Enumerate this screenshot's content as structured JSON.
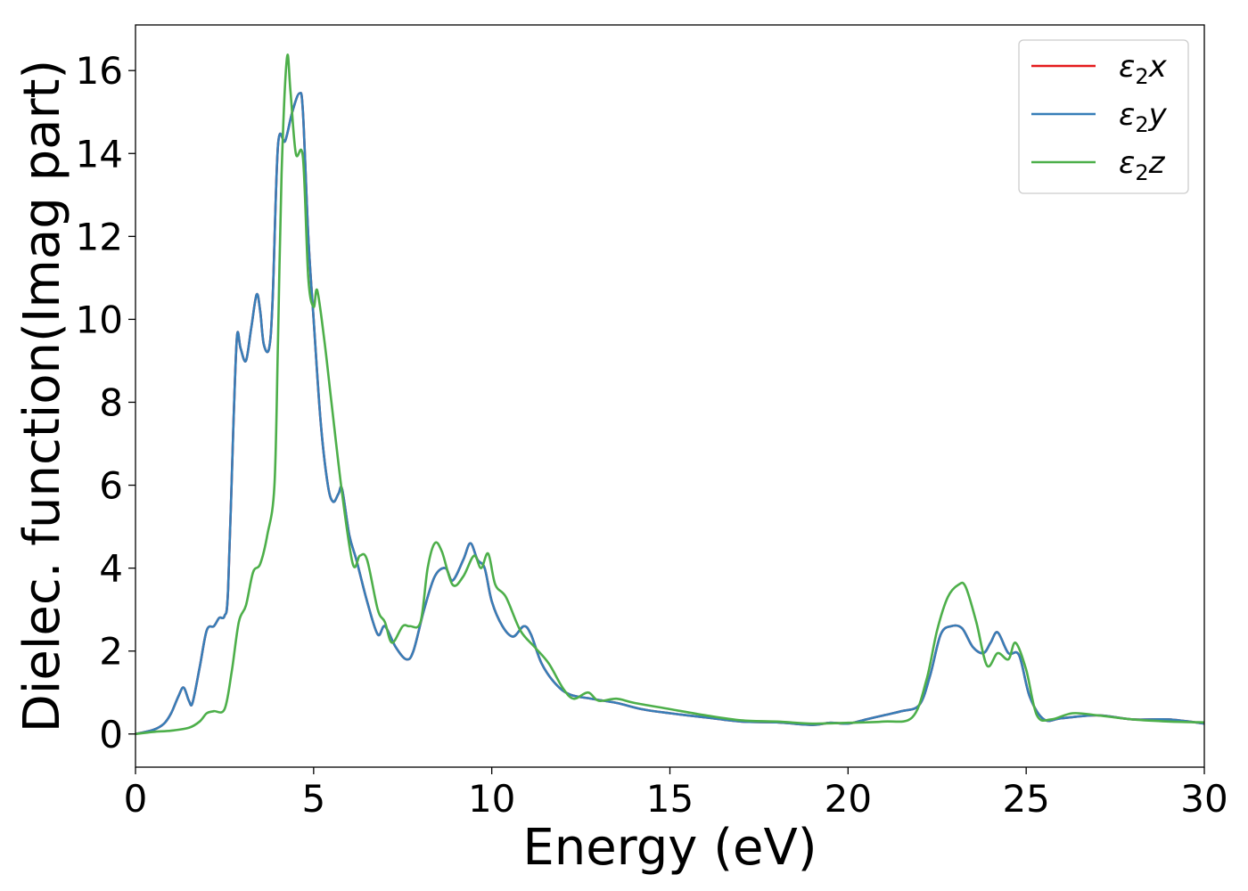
{
  "chart_data": {
    "type": "line",
    "xlabel": "Energy (eV)",
    "ylabel": "Dielec. function(Imag part)",
    "xlim": [
      0,
      30
    ],
    "ylim": [
      -0.8,
      17.1
    ],
    "x_ticks": [
      0,
      5,
      10,
      15,
      20,
      25,
      30
    ],
    "y_ticks": [
      0,
      2,
      4,
      6,
      8,
      10,
      12,
      14,
      16
    ],
    "grid": false,
    "legend": "top-right",
    "series": [
      {
        "name": "x",
        "name_prefix": "ε",
        "name_sub": "2",
        "color": "#e41a1c",
        "x": [
          0,
          0.5,
          0.8,
          1.0,
          1.2,
          1.35,
          1.5,
          1.6,
          1.8,
          2.0,
          2.2,
          2.35,
          2.5,
          2.6,
          2.75,
          2.85,
          2.95,
          3.1,
          3.25,
          3.4,
          3.5,
          3.6,
          3.75,
          3.85,
          4.0,
          4.2,
          4.4,
          4.6,
          4.7,
          4.85,
          5.0,
          5.2,
          5.4,
          5.55,
          5.7,
          5.8,
          6.0,
          6.2,
          6.5,
          6.8,
          7.0,
          7.3,
          7.6,
          7.8,
          8.1,
          8.4,
          8.7,
          8.9,
          9.2,
          9.4,
          9.6,
          9.8,
          10.0,
          10.3,
          10.6,
          10.9,
          11.1,
          11.4,
          11.8,
          12.2,
          12.8,
          13.5,
          14.2,
          15.0,
          16.0,
          17.0,
          18.0,
          19.0,
          19.5,
          20.0,
          20.5,
          21.0,
          21.5,
          22.0,
          22.3,
          22.6,
          22.9,
          23.2,
          23.5,
          23.8,
          24.0,
          24.2,
          24.5,
          24.8,
          25.1,
          25.5,
          26.0,
          27.0,
          28.0,
          29.0,
          30.0
        ],
        "values": [
          0.0,
          0.1,
          0.25,
          0.5,
          0.9,
          1.12,
          0.8,
          0.75,
          1.6,
          2.5,
          2.6,
          2.8,
          2.85,
          3.5,
          7.5,
          9.6,
          9.3,
          9.0,
          9.8,
          10.6,
          10.2,
          9.4,
          9.3,
          10.5,
          14.2,
          14.3,
          15.0,
          15.45,
          15.0,
          12.0,
          10.0,
          7.5,
          6.0,
          5.6,
          5.8,
          5.9,
          4.8,
          4.2,
          3.2,
          2.4,
          2.6,
          2.1,
          1.8,
          2.0,
          3.0,
          3.8,
          4.0,
          3.7,
          4.2,
          4.6,
          4.2,
          4.0,
          3.2,
          2.6,
          2.35,
          2.6,
          2.4,
          1.7,
          1.2,
          0.95,
          0.85,
          0.75,
          0.6,
          0.5,
          0.4,
          0.3,
          0.28,
          0.22,
          0.27,
          0.25,
          0.35,
          0.45,
          0.55,
          0.7,
          1.4,
          2.4,
          2.6,
          2.55,
          2.1,
          1.95,
          2.2,
          2.45,
          1.95,
          1.9,
          0.9,
          0.35,
          0.38,
          0.45,
          0.35,
          0.35,
          0.25
        ]
      },
      {
        "name": "y",
        "name_prefix": "ε",
        "name_sub": "2",
        "color": "#377eb8",
        "x": [
          0,
          0.5,
          0.8,
          1.0,
          1.2,
          1.35,
          1.5,
          1.6,
          1.8,
          2.0,
          2.2,
          2.35,
          2.5,
          2.6,
          2.75,
          2.85,
          2.95,
          3.1,
          3.25,
          3.4,
          3.5,
          3.6,
          3.75,
          3.85,
          4.0,
          4.2,
          4.4,
          4.6,
          4.7,
          4.85,
          5.0,
          5.2,
          5.4,
          5.55,
          5.7,
          5.8,
          6.0,
          6.2,
          6.5,
          6.8,
          7.0,
          7.3,
          7.6,
          7.8,
          8.1,
          8.4,
          8.7,
          8.9,
          9.2,
          9.4,
          9.6,
          9.8,
          10.0,
          10.3,
          10.6,
          10.9,
          11.1,
          11.4,
          11.8,
          12.2,
          12.8,
          13.5,
          14.2,
          15.0,
          16.0,
          17.0,
          18.0,
          19.0,
          19.5,
          20.0,
          20.5,
          21.0,
          21.5,
          22.0,
          22.3,
          22.6,
          22.9,
          23.2,
          23.5,
          23.8,
          24.0,
          24.2,
          24.5,
          24.8,
          25.1,
          25.5,
          26.0,
          27.0,
          28.0,
          29.0,
          30.0
        ],
        "values": [
          0.0,
          0.1,
          0.25,
          0.5,
          0.9,
          1.12,
          0.8,
          0.75,
          1.6,
          2.5,
          2.6,
          2.8,
          2.85,
          3.5,
          7.5,
          9.6,
          9.3,
          9.0,
          9.8,
          10.6,
          10.2,
          9.4,
          9.3,
          10.5,
          14.2,
          14.3,
          15.0,
          15.45,
          15.0,
          12.0,
          10.0,
          7.5,
          6.0,
          5.6,
          5.8,
          5.9,
          4.8,
          4.2,
          3.2,
          2.4,
          2.6,
          2.1,
          1.8,
          2.0,
          3.0,
          3.8,
          4.0,
          3.7,
          4.2,
          4.6,
          4.2,
          4.0,
          3.2,
          2.6,
          2.35,
          2.6,
          2.4,
          1.7,
          1.2,
          0.95,
          0.85,
          0.75,
          0.6,
          0.5,
          0.4,
          0.3,
          0.28,
          0.22,
          0.27,
          0.25,
          0.35,
          0.45,
          0.55,
          0.7,
          1.4,
          2.4,
          2.6,
          2.55,
          2.1,
          1.95,
          2.2,
          2.45,
          1.95,
          1.9,
          0.9,
          0.35,
          0.38,
          0.45,
          0.35,
          0.35,
          0.25
        ]
      },
      {
        "name": "z",
        "name_prefix": "ε",
        "name_sub": "2",
        "color": "#4daf4a",
        "x": [
          0,
          0.5,
          1.0,
          1.5,
          1.8,
          2.0,
          2.2,
          2.5,
          2.7,
          2.9,
          3.1,
          3.3,
          3.5,
          3.7,
          3.9,
          4.0,
          4.1,
          4.25,
          4.35,
          4.5,
          4.7,
          4.85,
          5.0,
          5.1,
          5.3,
          5.5,
          5.8,
          6.1,
          6.3,
          6.5,
          6.8,
          7.0,
          7.2,
          7.5,
          7.7,
          8.0,
          8.2,
          8.4,
          8.6,
          8.9,
          9.2,
          9.5,
          9.7,
          9.9,
          10.1,
          10.4,
          10.8,
          11.2,
          11.6,
          12.0,
          12.3,
          12.7,
          13.0,
          13.5,
          14.0,
          15.0,
          16.0,
          17.0,
          18.0,
          19.0,
          20.0,
          21.0,
          21.8,
          22.2,
          22.5,
          22.8,
          23.1,
          23.3,
          23.6,
          23.9,
          24.2,
          24.5,
          24.7,
          25.0,
          25.3,
          25.7,
          26.3,
          27.0,
          28.0,
          29.0,
          30.0
        ],
        "values": [
          0.0,
          0.05,
          0.08,
          0.15,
          0.3,
          0.5,
          0.55,
          0.6,
          1.5,
          2.7,
          3.1,
          3.9,
          4.1,
          4.8,
          6.0,
          9.5,
          13.5,
          16.3,
          15.5,
          14.0,
          13.9,
          11.0,
          10.3,
          10.7,
          9.5,
          8.0,
          5.8,
          4.1,
          4.3,
          4.2,
          3.0,
          2.7,
          2.2,
          2.6,
          2.6,
          2.7,
          4.0,
          4.6,
          4.4,
          3.6,
          3.8,
          4.3,
          4.0,
          4.35,
          3.6,
          3.3,
          2.5,
          2.1,
          1.7,
          1.1,
          0.85,
          1.0,
          0.8,
          0.85,
          0.75,
          0.6,
          0.45,
          0.33,
          0.3,
          0.25,
          0.27,
          0.3,
          0.4,
          1.3,
          2.5,
          3.3,
          3.6,
          3.55,
          2.7,
          1.65,
          1.95,
          1.8,
          2.2,
          1.55,
          0.45,
          0.35,
          0.5,
          0.45,
          0.35,
          0.3,
          0.28
        ]
      }
    ]
  }
}
